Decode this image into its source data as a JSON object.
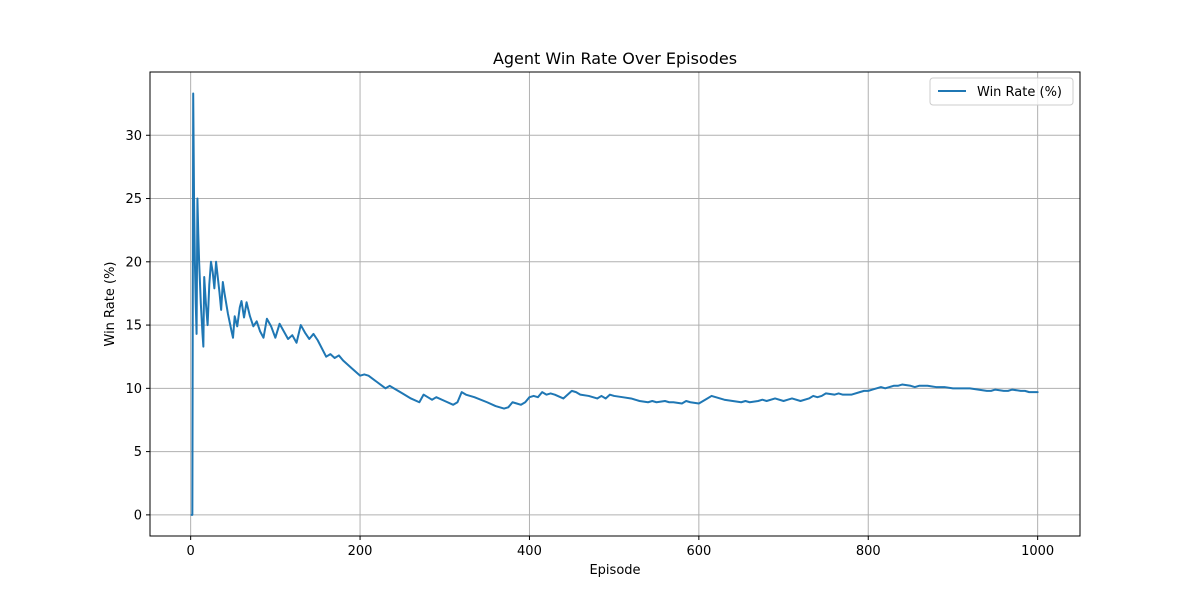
{
  "chart_data": {
    "type": "line",
    "title": "Agent Win Rate Over Episodes",
    "xlabel": "Episode",
    "ylabel": "Win Rate (%)",
    "xlim": [
      -48,
      1050
    ],
    "ylim": [
      -1.67,
      35.0
    ],
    "xticks": [
      0,
      200,
      400,
      600,
      800,
      1000
    ],
    "xtick_labels": [
      "0",
      "200",
      "400",
      "600",
      "800",
      "1000"
    ],
    "yticks": [
      0,
      5,
      10,
      15,
      20,
      25,
      30
    ],
    "ytick_labels": [
      "0",
      "5",
      "10",
      "15",
      "20",
      "25",
      "30"
    ],
    "grid": true,
    "legend_position": "top-right",
    "series": [
      {
        "name": "Win Rate (%)",
        "color": "#1f77b4",
        "x": [
          1,
          2,
          3,
          4,
          5,
          6,
          7,
          8,
          9,
          10,
          12,
          14,
          15,
          16,
          18,
          20,
          22,
          24,
          26,
          28,
          30,
          32,
          34,
          36,
          38,
          40,
          44,
          48,
          50,
          52,
          55,
          58,
          60,
          63,
          66,
          70,
          74,
          78,
          82,
          86,
          90,
          95,
          100,
          105,
          110,
          115,
          120,
          125,
          130,
          135,
          140,
          145,
          150,
          160,
          165,
          170,
          175,
          180,
          190,
          200,
          205,
          210,
          220,
          230,
          235,
          240,
          250,
          260,
          270,
          275,
          280,
          285,
          290,
          300,
          310,
          315,
          320,
          325,
          335,
          350,
          360,
          370,
          375,
          380,
          385,
          390,
          395,
          400,
          405,
          410,
          415,
          420,
          425,
          430,
          440,
          450,
          455,
          460,
          470,
          480,
          485,
          490,
          495,
          500,
          510,
          520,
          530,
          540,
          545,
          550,
          560,
          565,
          570,
          580,
          585,
          590,
          600,
          605,
          610,
          615,
          620,
          630,
          640,
          650,
          655,
          660,
          670,
          675,
          680,
          690,
          700,
          705,
          710,
          720,
          730,
          735,
          740,
          745,
          750,
          760,
          765,
          770,
          780,
          790,
          795,
          800,
          805,
          810,
          815,
          820,
          830,
          835,
          840,
          850,
          855,
          860,
          870,
          880,
          890,
          900,
          910,
          920,
          930,
          940,
          945,
          950,
          960,
          965,
          970,
          980,
          985,
          990,
          1000
        ],
        "y": [
          0,
          0,
          33.3,
          25.0,
          20.0,
          16.7,
          14.3,
          25.0,
          22.2,
          20.0,
          16.7,
          14.3,
          13.3,
          18.8,
          16.7,
          15.0,
          18.2,
          20.0,
          19.2,
          17.9,
          20.0,
          18.8,
          17.6,
          16.2,
          18.4,
          17.5,
          15.9,
          14.6,
          14.0,
          15.7,
          14.9,
          16.4,
          16.9,
          15.6,
          16.8,
          15.7,
          14.9,
          15.3,
          14.5,
          14.0,
          15.5,
          14.9,
          14.0,
          15.1,
          14.5,
          13.9,
          14.2,
          13.6,
          15.0,
          14.4,
          13.9,
          14.3,
          13.8,
          12.5,
          12.7,
          12.4,
          12.6,
          12.2,
          11.6,
          11.0,
          11.1,
          11.0,
          10.5,
          10.0,
          10.2,
          10.0,
          9.6,
          9.2,
          8.9,
          9.5,
          9.3,
          9.1,
          9.3,
          9.0,
          8.7,
          8.9,
          9.7,
          9.5,
          9.3,
          8.9,
          8.6,
          8.4,
          8.5,
          8.9,
          8.8,
          8.7,
          8.9,
          9.3,
          9.4,
          9.3,
          9.7,
          9.5,
          9.6,
          9.5,
          9.2,
          9.8,
          9.7,
          9.5,
          9.4,
          9.2,
          9.4,
          9.2,
          9.5,
          9.4,
          9.3,
          9.2,
          9.0,
          8.9,
          9.0,
          8.9,
          9.0,
          8.9,
          8.9,
          8.8,
          9.0,
          8.9,
          8.8,
          9.0,
          9.2,
          9.4,
          9.3,
          9.1,
          9.0,
          8.9,
          9.0,
          8.9,
          9.0,
          9.1,
          9.0,
          9.2,
          9.0,
          9.1,
          9.2,
          9.0,
          9.2,
          9.4,
          9.3,
          9.4,
          9.6,
          9.5,
          9.6,
          9.5,
          9.5,
          9.7,
          9.8,
          9.8,
          9.9,
          10.0,
          10.1,
          10.0,
          10.2,
          10.2,
          10.3,
          10.2,
          10.1,
          10.2,
          10.2,
          10.1,
          10.1,
          10.0,
          10.0,
          10.0,
          9.9,
          9.8,
          9.8,
          9.9,
          9.8,
          9.8,
          9.9,
          9.8,
          9.8,
          9.7,
          9.7
        ]
      }
    ]
  }
}
